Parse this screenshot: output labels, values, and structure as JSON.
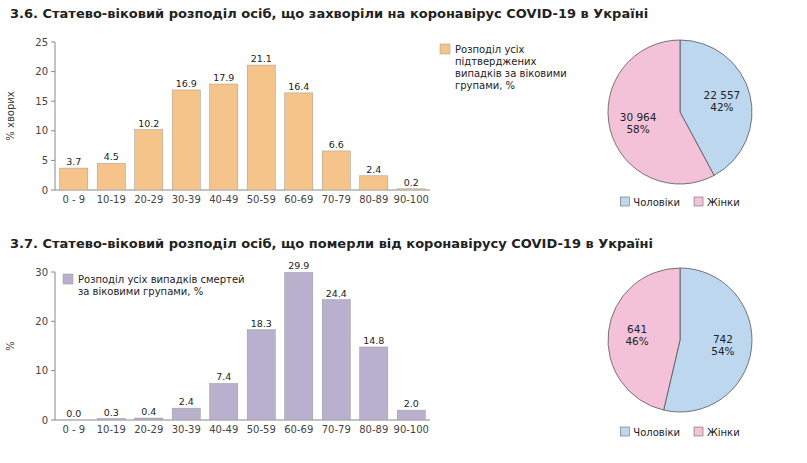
{
  "chart_data": [
    {
      "type": "bar",
      "title": "3.6.  Статево-віковий розподіл осіб, що захворіли на коронавірус COVID-19 в Україні",
      "categories": [
        "0 - 9",
        "10-19",
        "20-29",
        "30-39",
        "40-49",
        "50-59",
        "60-69",
        "70-79",
        "80-89",
        "90-100"
      ],
      "series": [
        {
          "name": "Розподіл усіх\nпідтверджених\nвипадків за віковими\nгрупами, %",
          "color": "#F5C48A",
          "values": [
            3.7,
            4.5,
            10.2,
            16.9,
            17.9,
            21.1,
            16.4,
            6.6,
            2.4,
            0.2
          ]
        }
      ],
      "ylabel": "% хворих",
      "ylim": [
        0,
        25
      ],
      "yticks": [
        0,
        5,
        10,
        15,
        20,
        25
      ],
      "grid": false,
      "legend": "upper right",
      "data_labels": true
    },
    {
      "type": "bar",
      "title": "3.7.    Статево-віковий розподіл осіб, що померли від коронавірусу COVID-19 в Україні",
      "categories": [
        "0 - 9",
        "10-19",
        "20-29",
        "30-39",
        "40-49",
        "50-59",
        "60-69",
        "70-79",
        "80-89",
        "90-100"
      ],
      "series": [
        {
          "name": "Розподіл усіх випадків смертей\nза віковими групами, %",
          "color": "#B8B0CC",
          "values": [
            0.0,
            0.3,
            0.4,
            2.4,
            7.4,
            18.3,
            29.9,
            24.4,
            14.8,
            2.0
          ],
          "value_labels": [
            "0.0",
            "0.3",
            "0.4",
            "2.4",
            "7.4",
            "18.3",
            "29.9",
            "24.4",
            "14.8",
            "2.0"
          ]
        }
      ],
      "ylabel": "%",
      "ylim": [
        0,
        30
      ],
      "yticks": [
        0,
        10,
        20,
        30
      ],
      "grid": false,
      "legend": "upper left",
      "data_labels": true
    },
    {
      "type": "pie",
      "categories": [
        "Чоловіки",
        "Жінки"
      ],
      "values": [
        22557,
        30964
      ],
      "value_labels": [
        "22 557\n42%",
        "30 964\n58%"
      ],
      "colors": [
        "#BDD7EE",
        "#F4C2D8"
      ],
      "legend": "lower center",
      "data_labels": true
    },
    {
      "type": "pie",
      "categories": [
        "Чоловіки",
        "Жінки"
      ],
      "values": [
        742,
        641
      ],
      "value_labels": [
        "742\n54%",
        "641\n46%"
      ],
      "colors": [
        "#BDD7EE",
        "#F4C2D8"
      ],
      "legend": "lower center",
      "data_labels": true
    }
  ]
}
